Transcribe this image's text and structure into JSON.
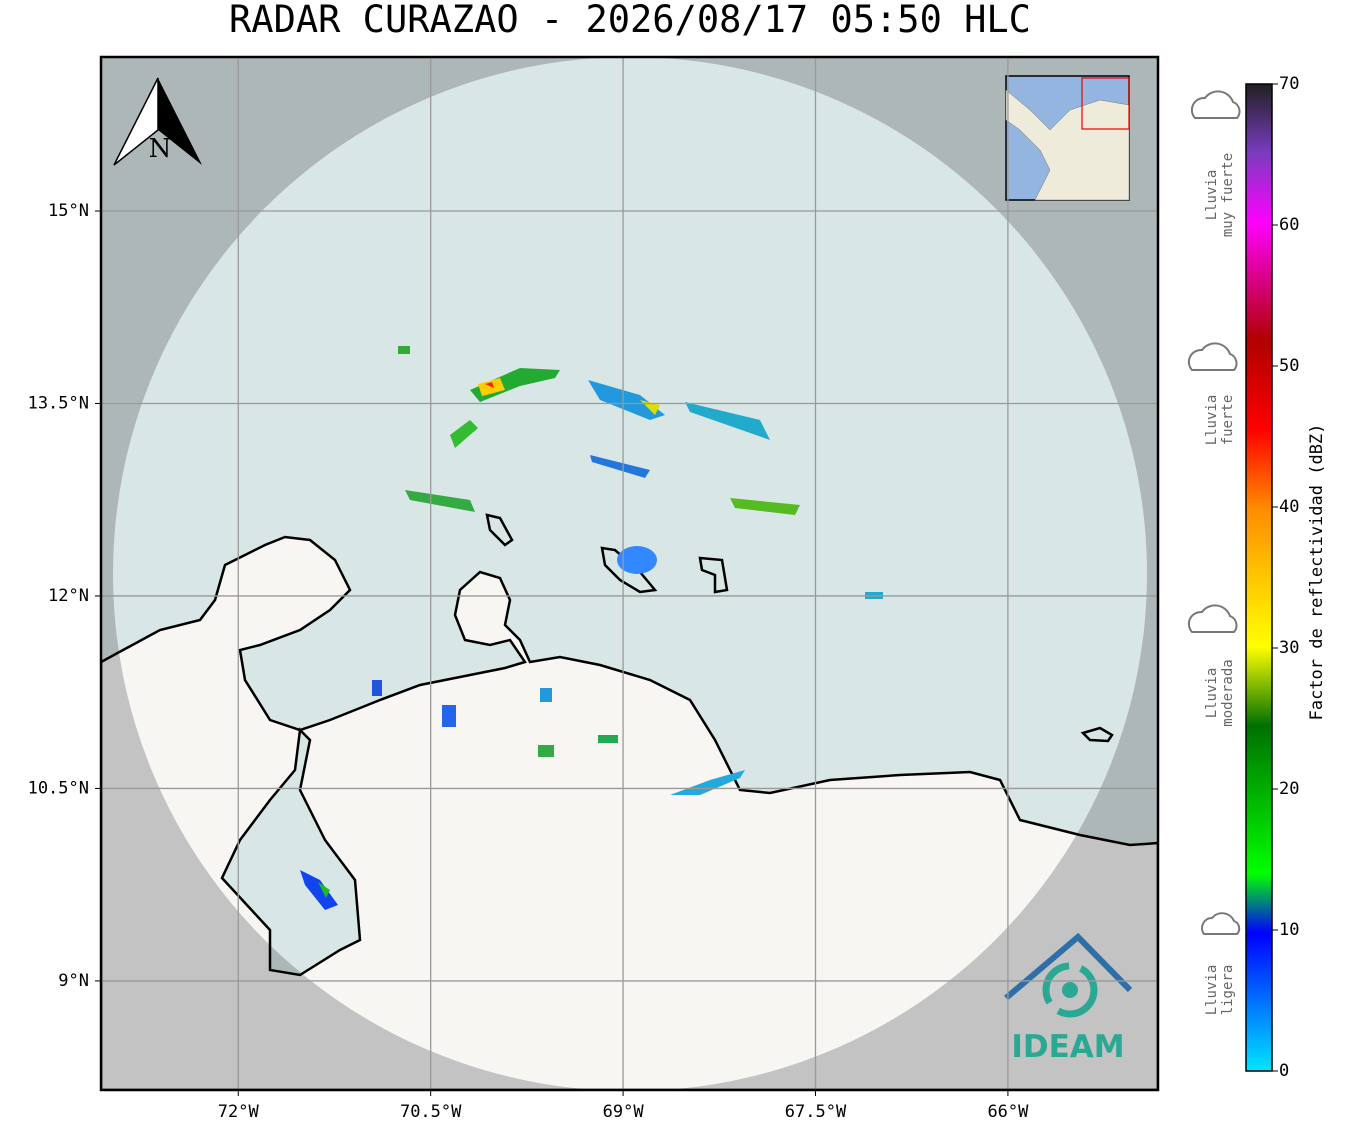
{
  "title": "RADAR CURAZAO - 2026/08/17 05:50 HLC",
  "map": {
    "xlim": [
      -73.07,
      -64.83
    ],
    "ylim": [
      8.15,
      16.2
    ],
    "xticks": [
      {
        "value": -72,
        "label": "72°W"
      },
      {
        "value": -70.5,
        "label": "70.5°W"
      },
      {
        "value": -69,
        "label": "69°W"
      },
      {
        "value": -67.5,
        "label": "67.5°W"
      },
      {
        "value": -66,
        "label": "66°W"
      }
    ],
    "yticks": [
      {
        "value": 9,
        "label": "9°N"
      },
      {
        "value": 10.5,
        "label": "10.5°N"
      },
      {
        "value": 12,
        "label": "12°N"
      },
      {
        "value": 13.5,
        "label": "13.5°N"
      },
      {
        "value": 15,
        "label": "15°N"
      }
    ],
    "north": "N",
    "logo": "IDEAM"
  },
  "colorbar": {
    "label": "Factor de reflectividad (dBZ)",
    "lim": [
      0,
      70
    ],
    "ticks": [
      0,
      10,
      20,
      30,
      40,
      50,
      60,
      70
    ]
  },
  "rain_levels": [
    {
      "lines": [
        "Lluvia",
        "muy fuerte"
      ]
    },
    {
      "lines": [
        "Lluvia",
        "fuerte"
      ]
    },
    {
      "lines": [
        "Lluvia",
        "moderada"
      ]
    },
    {
      "lines": [
        "Lluvia",
        "ligera"
      ]
    }
  ]
}
